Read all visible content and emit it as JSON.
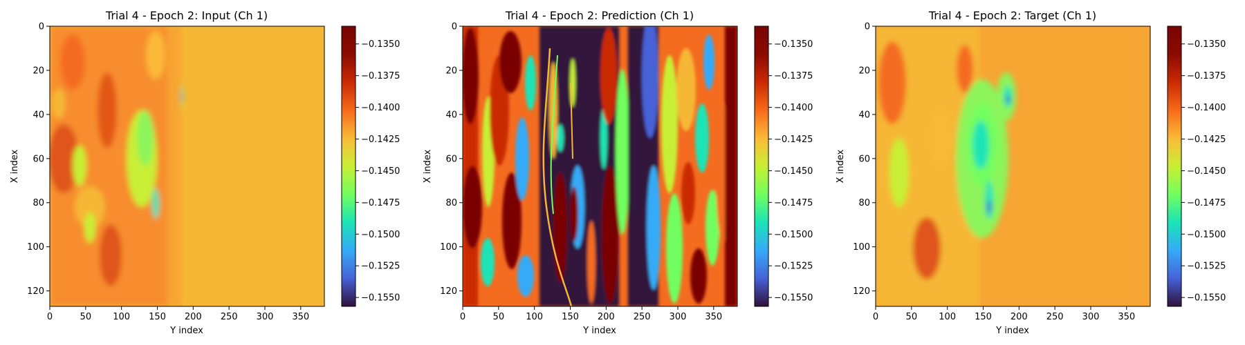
{
  "chart_data": [
    {
      "type": "heatmap",
      "title": "Trial 4 - Epoch 2: Input (Ch 1)",
      "xlabel": "Y index",
      "ylabel": "X index",
      "xlim": [
        0,
        383
      ],
      "ylim": [
        127,
        0
      ],
      "xticks": [
        "0",
        "50",
        "100",
        "150",
        "200",
        "250",
        "300",
        "350"
      ],
      "yticks": [
        "0",
        "20",
        "40",
        "60",
        "80",
        "100",
        "120"
      ],
      "colorbar": {
        "colormap": "turbo",
        "vmin": -0.1557,
        "vmax": -0.1336,
        "ticks": [
          "−0.1350",
          "−0.1375",
          "−0.1400",
          "−0.1425",
          "−0.1450",
          "−0.1475",
          "−0.1500",
          "−0.1525",
          "−0.1550"
        ]
      }
    },
    {
      "type": "heatmap",
      "title": "Trial 4 - Epoch 2: Prediction (Ch 1)",
      "xlabel": "Y index",
      "ylabel": "X index",
      "xlim": [
        0,
        383
      ],
      "ylim": [
        127,
        0
      ],
      "xticks": [
        "0",
        "50",
        "100",
        "150",
        "200",
        "250",
        "300",
        "350"
      ],
      "yticks": [
        "0",
        "20",
        "40",
        "60",
        "80",
        "100",
        "120"
      ],
      "colorbar": {
        "colormap": "turbo",
        "vmin": -0.1557,
        "vmax": -0.1336,
        "ticks": [
          "−0.1350",
          "−0.1375",
          "−0.1400",
          "−0.1425",
          "−0.1450",
          "−0.1475",
          "−0.1500",
          "−0.1525",
          "−0.1550"
        ]
      }
    },
    {
      "type": "heatmap",
      "title": "Trial 4 - Epoch 2: Target (Ch 1)",
      "xlabel": "Y index",
      "ylabel": "X index",
      "xlim": [
        0,
        383
      ],
      "ylim": [
        127,
        0
      ],
      "xticks": [
        "0",
        "50",
        "100",
        "150",
        "200",
        "250",
        "300",
        "350"
      ],
      "yticks": [
        "0",
        "20",
        "40",
        "60",
        "80",
        "100",
        "120"
      ],
      "colorbar": {
        "colormap": "turbo",
        "vmin": -0.1557,
        "vmax": -0.1336,
        "ticks": [
          "−0.1350",
          "−0.1375",
          "−0.1400",
          "−0.1425",
          "−0.1450",
          "−0.1475",
          "−0.1500",
          "−0.1525",
          "−0.1550"
        ]
      }
    }
  ]
}
